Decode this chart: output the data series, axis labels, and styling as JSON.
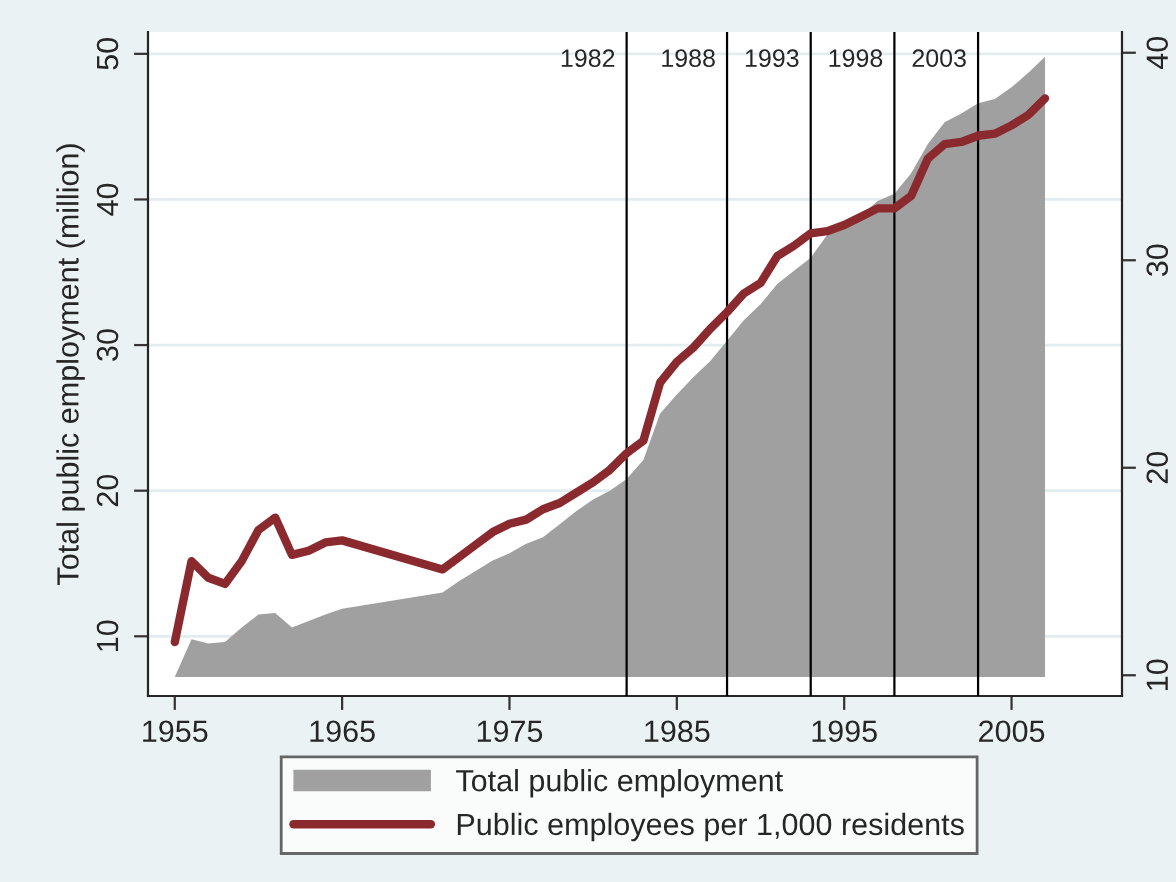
{
  "chart_data": {
    "type": "area",
    "ylabel": "Total public employment (million)",
    "xlim": [
      1953.4,
      2011.6
    ],
    "xticks": [
      1955,
      1965,
      1975,
      1985,
      1995,
      2005
    ],
    "ylim": [
      5.9,
      51.5
    ],
    "yticks": [
      10,
      20,
      30,
      40,
      50
    ],
    "y2lim": [
      9.0,
      41.0
    ],
    "y2ticks": [
      10,
      20,
      30,
      40
    ],
    "grid": "y",
    "legend": "bottom",
    "series": [
      {
        "name": "Total public employment",
        "color": "#a0a0a0",
        "x": [
          1955,
          1956,
          1957,
          1958,
          1959,
          1960,
          1961,
          1962,
          1963,
          1964,
          1965,
          1971,
          1972,
          1973,
          1974,
          1975,
          1976,
          1977,
          1978,
          1979,
          1980,
          1981,
          1982,
          1983,
          1984,
          1985,
          1986,
          1987,
          1988,
          1989,
          1990,
          1991,
          1992,
          1993,
          1994,
          1995,
          1996,
          1997,
          1998,
          1999,
          2000,
          2001,
          2002,
          2003,
          2004,
          2005,
          2006,
          2007
        ],
        "values": [
          7.2,
          9.8,
          9.5,
          9.6,
          10.6,
          11.5,
          11.6,
          10.6,
          11.05,
          11.5,
          11.9,
          13.0,
          13.8,
          14.5,
          15.2,
          15.7,
          16.35,
          16.8,
          17.7,
          18.6,
          19.4,
          20.0,
          20.8,
          22.1,
          25.3,
          26.6,
          27.8,
          28.9,
          30.3,
          31.7,
          32.8,
          34.2,
          35.1,
          36.0,
          37.6,
          38.1,
          38.9,
          39.9,
          40.4,
          41.8,
          43.8,
          45.3,
          45.9,
          46.6,
          46.9,
          47.7,
          48.7,
          49.8
        ]
      },
      {
        "name": "Public employees per 1,000 residents",
        "type": "line",
        "axis": "y2",
        "color": "#8b2a2e",
        "x": [
          1955,
          1956,
          1957,
          1958,
          1959,
          1960,
          1961,
          1962,
          1963,
          1964,
          1965,
          1971,
          1972,
          1973,
          1974,
          1975,
          1976,
          1977,
          1978,
          1979,
          1980,
          1981,
          1982,
          1983,
          1984,
          1985,
          1986,
          1987,
          1988,
          1989,
          1990,
          1991,
          1992,
          1993,
          1994,
          1995,
          1996,
          1997,
          1998,
          1999,
          2000,
          2001,
          2002,
          2003,
          2004,
          2005,
          2006,
          2007
        ],
        "values": [
          11.6,
          15.5,
          14.7,
          14.4,
          15.5,
          17.0,
          17.6,
          15.8,
          16.0,
          16.4,
          16.5,
          15.1,
          15.7,
          16.3,
          16.9,
          17.3,
          17.5,
          18.0,
          18.3,
          18.8,
          19.3,
          19.9,
          20.7,
          21.3,
          24.1,
          25.1,
          25.8,
          26.7,
          27.5,
          28.4,
          28.9,
          30.2,
          30.7,
          31.3,
          31.4,
          31.7,
          32.1,
          32.5,
          32.5,
          33.1,
          34.9,
          35.6,
          35.7,
          36.0,
          36.1,
          36.5,
          37.0,
          37.8
        ]
      }
    ],
    "ref_lines": [
      {
        "axis": "x",
        "value": 1982,
        "label": "1982",
        "color": "#000000"
      },
      {
        "axis": "x",
        "value": 1988,
        "label": "1988",
        "color": "#000000"
      },
      {
        "axis": "x",
        "value": 1993,
        "label": "1993",
        "color": "#000000"
      },
      {
        "axis": "x",
        "value": 1998,
        "label": "1998",
        "color": "#000000"
      },
      {
        "axis": "x",
        "value": 2003,
        "label": "2003",
        "color": "#000000"
      }
    ]
  }
}
